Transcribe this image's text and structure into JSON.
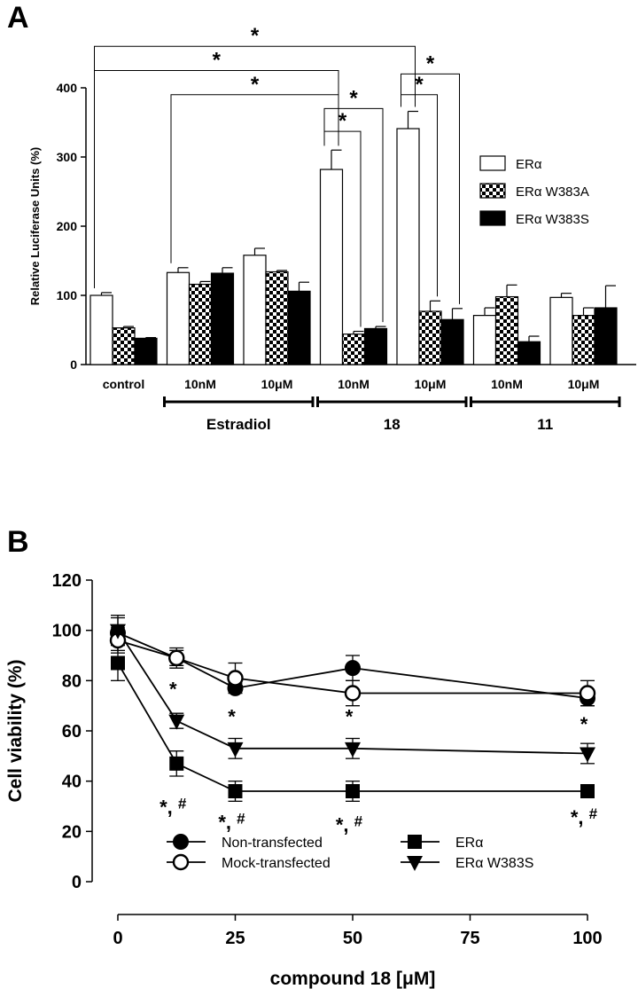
{
  "chart_data": [
    {
      "type": "bar",
      "panel": "A",
      "ylabel": "Relative Luciferase Units (%)",
      "ylim": [
        0,
        400
      ],
      "yticks": [
        0,
        100,
        200,
        300,
        400
      ],
      "series_names": [
        "ERα",
        "ERα W383A",
        "ERα W383S"
      ],
      "series_styles": [
        "white",
        "checker",
        "black"
      ],
      "categories": [
        {
          "label": "control",
          "values": [
            100,
            53,
            38
          ],
          "errors": [
            4,
            2,
            1
          ]
        },
        {
          "label": "10nM",
          "values": [
            133,
            116,
            132
          ],
          "errors": [
            7,
            4,
            8
          ]
        },
        {
          "label": "10μM",
          "values": [
            158,
            134,
            106
          ],
          "errors": [
            10,
            2,
            13
          ]
        },
        {
          "label": "10nM",
          "values": [
            282,
            44,
            52
          ],
          "errors": [
            28,
            4,
            3
          ]
        },
        {
          "label": "10μM",
          "values": [
            341,
            77,
            65
          ],
          "errors": [
            25,
            15,
            16
          ]
        },
        {
          "label": "10nM",
          "values": [
            71,
            98,
            33
          ],
          "errors": [
            11,
            17,
            8
          ]
        },
        {
          "label": "10μM",
          "values": [
            97,
            71,
            82
          ],
          "errors": [
            6,
            11,
            32
          ]
        }
      ],
      "groups": [
        {
          "label": "Estradiol",
          "categories": [
            1,
            2
          ]
        },
        {
          "label": "18",
          "categories": [
            3,
            4
          ]
        },
        {
          "label": "11",
          "categories": [
            5,
            6
          ]
        }
      ],
      "significance_brackets": [
        {
          "from": {
            "category": 0,
            "series": 0
          },
          "to": {
            "category": 4,
            "series": 0
          },
          "level": 460,
          "label": "*"
        },
        {
          "from": {
            "category": 0,
            "series": 0
          },
          "to": {
            "category": 3,
            "series": 0
          },
          "level": 425,
          "label": "*"
        },
        {
          "from": {
            "category": 1,
            "series": 0
          },
          "to": {
            "category": 3,
            "series": 0
          },
          "level": 390,
          "label": "*"
        },
        {
          "from": {
            "category": 3,
            "series": 0
          },
          "to": {
            "category": 3,
            "series": 2
          },
          "level": 370,
          "label": "*"
        },
        {
          "from": {
            "category": 3,
            "series": 0
          },
          "to": {
            "category": 3,
            "series": 1
          },
          "level": 337,
          "label": "*"
        },
        {
          "from": {
            "category": 4,
            "series": 0
          },
          "to": {
            "category": 4,
            "series": 2
          },
          "level": 420,
          "label": "*"
        },
        {
          "from": {
            "category": 4,
            "series": 0
          },
          "to": {
            "category": 4,
            "series": 1
          },
          "level": 390,
          "label": "*"
        }
      ]
    },
    {
      "type": "line",
      "panel": "B",
      "xlabel": "compound 18 [μM]",
      "ylabel": "Cell viability (%)",
      "xlim": [
        0,
        100
      ],
      "xticks": [
        0,
        25,
        50,
        75,
        100
      ],
      "ylim": [
        0,
        120
      ],
      "yticks": [
        0,
        20,
        40,
        60,
        80,
        100,
        120
      ],
      "series": [
        {
          "name": "Non-transfected",
          "marker": "filled-circle",
          "x": [
            0,
            12.5,
            25,
            50,
            100
          ],
          "y": [
            99,
            89,
            77,
            85,
            73
          ],
          "err": [
            7,
            3,
            2,
            5,
            3
          ]
        },
        {
          "name": "Mock-transfected",
          "marker": "open-circle",
          "x": [
            0,
            12.5,
            25,
            50,
            100
          ],
          "y": [
            96,
            89,
            81,
            75,
            75
          ],
          "err": [
            5,
            4,
            6,
            5,
            5
          ]
        },
        {
          "name": "ERα",
          "marker": "filled-square",
          "x": [
            0,
            12.5,
            25,
            50,
            100
          ],
          "y": [
            87,
            47,
            36,
            36,
            36
          ],
          "err": [
            7,
            5,
            4,
            4,
            1
          ]
        },
        {
          "name": "ERα W383S",
          "marker": "filled-triangle-down",
          "x": [
            0,
            12.5,
            25,
            50,
            100
          ],
          "y": [
            100,
            64,
            53,
            53,
            51
          ],
          "err": [
            5,
            3,
            4,
            4,
            4
          ]
        }
      ],
      "annotations": [
        {
          "x": 12.5,
          "y": 74,
          "text": "*"
        },
        {
          "x": 25,
          "y": 63,
          "text": "*"
        },
        {
          "x": 50,
          "y": 63,
          "text": "*"
        },
        {
          "x": 100,
          "y": 60,
          "text": "*"
        },
        {
          "x": 12.5,
          "y": 27,
          "text": "*, #"
        },
        {
          "x": 25,
          "y": 21,
          "text": "*, #"
        },
        {
          "x": 50,
          "y": 20,
          "text": "*, #"
        },
        {
          "x": 100,
          "y": 23,
          "text": "*, #"
        }
      ]
    }
  ]
}
